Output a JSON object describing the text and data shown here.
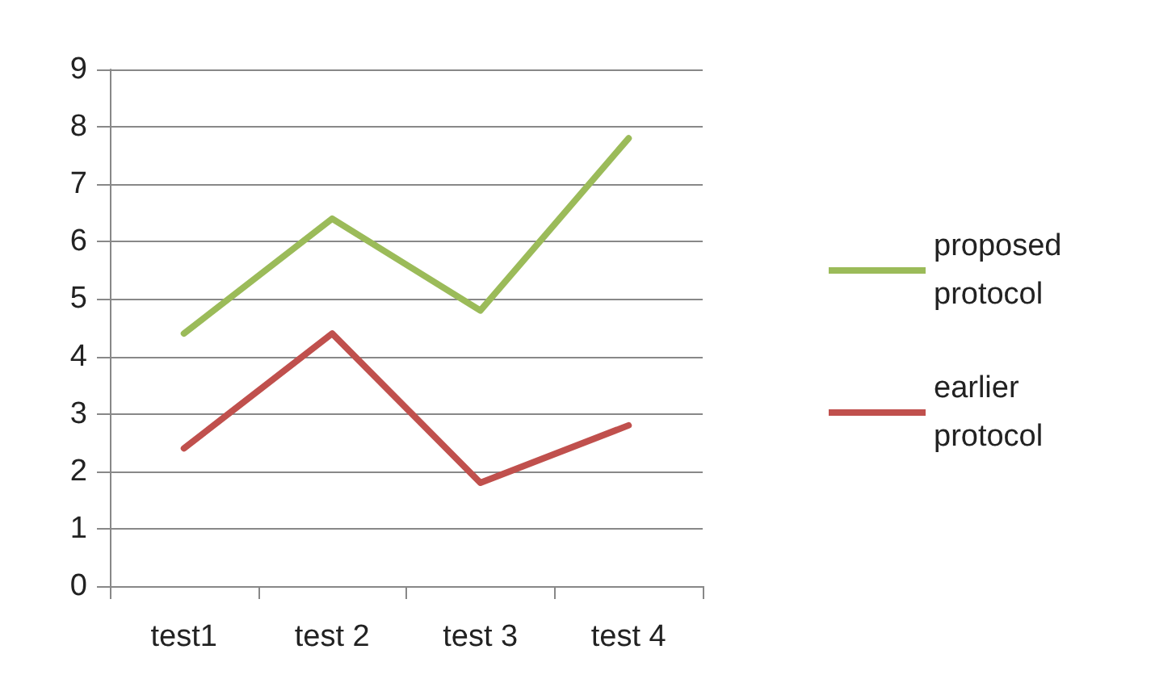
{
  "chart_data": {
    "type": "line",
    "categories": [
      "test1",
      "test 2",
      "test 3",
      "test 4"
    ],
    "series": [
      {
        "name": "proposed protocol",
        "color": "#9bbb59",
        "values": [
          4.4,
          6.4,
          4.8,
          7.8
        ]
      },
      {
        "name": "earlier protocol",
        "color": "#c0504d",
        "values": [
          2.4,
          4.4,
          1.8,
          2.8
        ]
      }
    ],
    "ylim": [
      0,
      9
    ],
    "yticks": [
      0,
      1,
      2,
      3,
      4,
      5,
      6,
      7,
      8,
      9
    ],
    "grid": "y",
    "legend": "right",
    "marker": "none",
    "line_style": "solid"
  }
}
